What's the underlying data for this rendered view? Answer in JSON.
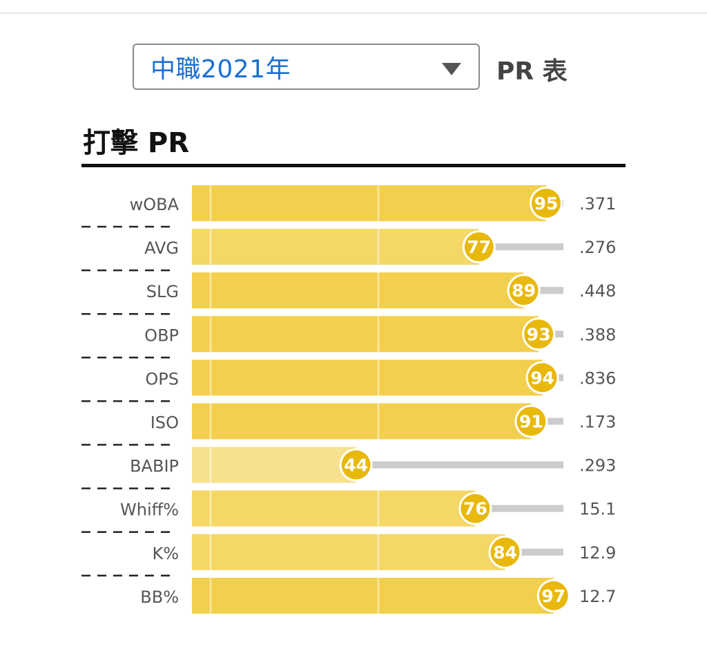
{
  "selector": {
    "value": "中職2021年"
  },
  "table_label": "PR 表",
  "section_title": "打擊 PR",
  "colors": {
    "bar_high": "#f2cf4c",
    "bar_mid": "#f4d766",
    "bar_low": "#f7e18e",
    "badge": "#e8b90c",
    "track": "#cccccc"
  },
  "chart_data": {
    "type": "bar",
    "orientation": "horizontal",
    "title": "打擊 PR",
    "xlim": [
      0,
      100
    ],
    "categories": [
      "wOBA",
      "AVG",
      "SLG",
      "OBP",
      "OPS",
      "ISO",
      "BABIP",
      "Whiff%",
      "K%",
      "BB%"
    ],
    "values": [
      95,
      77,
      89,
      93,
      94,
      91,
      44,
      76,
      84,
      97
    ],
    "stat_values": [
      ".371",
      ".276",
      ".448",
      ".388",
      ".836",
      ".173",
      ".293",
      "15.1",
      "12.9",
      "12.7"
    ]
  }
}
